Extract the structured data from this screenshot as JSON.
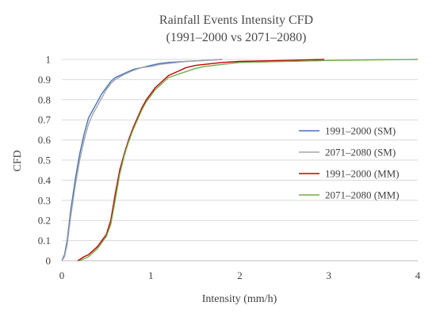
{
  "chart_data": {
    "type": "line",
    "title": "Rainfall Events Intensity CFD",
    "subtitle": "(1991–2000 vs 2071–2080)",
    "xlabel": "Intensity (mm/h)",
    "ylabel": "CFD",
    "xlim": [
      0,
      4
    ],
    "ylim": [
      0,
      1
    ],
    "xticks": [
      "0",
      "1",
      "2",
      "3",
      "4"
    ],
    "yticks": [
      "0",
      "0.1",
      "0.2",
      "0.3",
      "0.4",
      "0.5",
      "0.6",
      "0.7",
      "0.8",
      "0.9",
      "1"
    ],
    "grid": "horizontal",
    "legend_position": "right",
    "series": [
      {
        "name": "1991–2000  (SM)",
        "color": "#4472c4",
        "x": [
          0,
          0.03,
          0.06,
          0.1,
          0.15,
          0.2,
          0.25,
          0.3,
          0.35,
          0.4,
          0.45,
          0.5,
          0.55,
          0.6,
          0.7,
          0.8,
          0.9,
          1.0,
          1.1,
          1.2,
          1.4,
          1.6,
          1.8
        ],
        "y": [
          0,
          0.03,
          0.1,
          0.25,
          0.4,
          0.53,
          0.63,
          0.71,
          0.75,
          0.79,
          0.83,
          0.86,
          0.89,
          0.91,
          0.93,
          0.95,
          0.96,
          0.97,
          0.98,
          0.985,
          0.99,
          0.995,
          1.0
        ]
      },
      {
        "name": "2071–2080  (SM)",
        "color": "#a5a5a5",
        "x": [
          0,
          0.03,
          0.06,
          0.1,
          0.15,
          0.2,
          0.25,
          0.3,
          0.35,
          0.4,
          0.45,
          0.5,
          0.55,
          0.6,
          0.7,
          0.8,
          0.9,
          1.0,
          1.1,
          1.2,
          1.4,
          1.6,
          1.8
        ],
        "y": [
          0,
          0.02,
          0.08,
          0.22,
          0.37,
          0.5,
          0.6,
          0.68,
          0.73,
          0.77,
          0.81,
          0.85,
          0.88,
          0.9,
          0.925,
          0.945,
          0.96,
          0.965,
          0.975,
          0.98,
          0.99,
          0.995,
          1.0
        ]
      },
      {
        "name": "1991–2000  (MM)",
        "color": "#c00000",
        "x": [
          0.18,
          0.25,
          0.3,
          0.35,
          0.4,
          0.45,
          0.5,
          0.55,
          0.6,
          0.65,
          0.7,
          0.75,
          0.8,
          0.85,
          0.9,
          0.95,
          1.0,
          1.05,
          1.1,
          1.15,
          1.2,
          1.3,
          1.4,
          1.5,
          1.6,
          1.8,
          2.0,
          2.5,
          2.95
        ],
        "y": [
          0,
          0.02,
          0.03,
          0.05,
          0.07,
          0.1,
          0.13,
          0.2,
          0.33,
          0.45,
          0.53,
          0.6,
          0.66,
          0.71,
          0.76,
          0.8,
          0.83,
          0.86,
          0.88,
          0.9,
          0.92,
          0.94,
          0.96,
          0.97,
          0.975,
          0.985,
          0.99,
          0.995,
          1.0
        ]
      },
      {
        "name": "2071–2080  (MM)",
        "color": "#70ad47",
        "x": [
          0.2,
          0.25,
          0.3,
          0.35,
          0.4,
          0.45,
          0.5,
          0.55,
          0.6,
          0.65,
          0.7,
          0.75,
          0.8,
          0.85,
          0.9,
          0.95,
          1.0,
          1.05,
          1.1,
          1.15,
          1.2,
          1.3,
          1.4,
          1.5,
          1.6,
          1.8,
          2.0,
          2.5,
          3.0,
          3.5,
          4.0
        ],
        "y": [
          0,
          0.01,
          0.02,
          0.04,
          0.06,
          0.09,
          0.12,
          0.18,
          0.3,
          0.43,
          0.52,
          0.59,
          0.65,
          0.7,
          0.75,
          0.79,
          0.82,
          0.85,
          0.87,
          0.89,
          0.91,
          0.925,
          0.94,
          0.955,
          0.965,
          0.975,
          0.985,
          0.99,
          0.995,
          0.998,
          1.0
        ]
      }
    ]
  }
}
